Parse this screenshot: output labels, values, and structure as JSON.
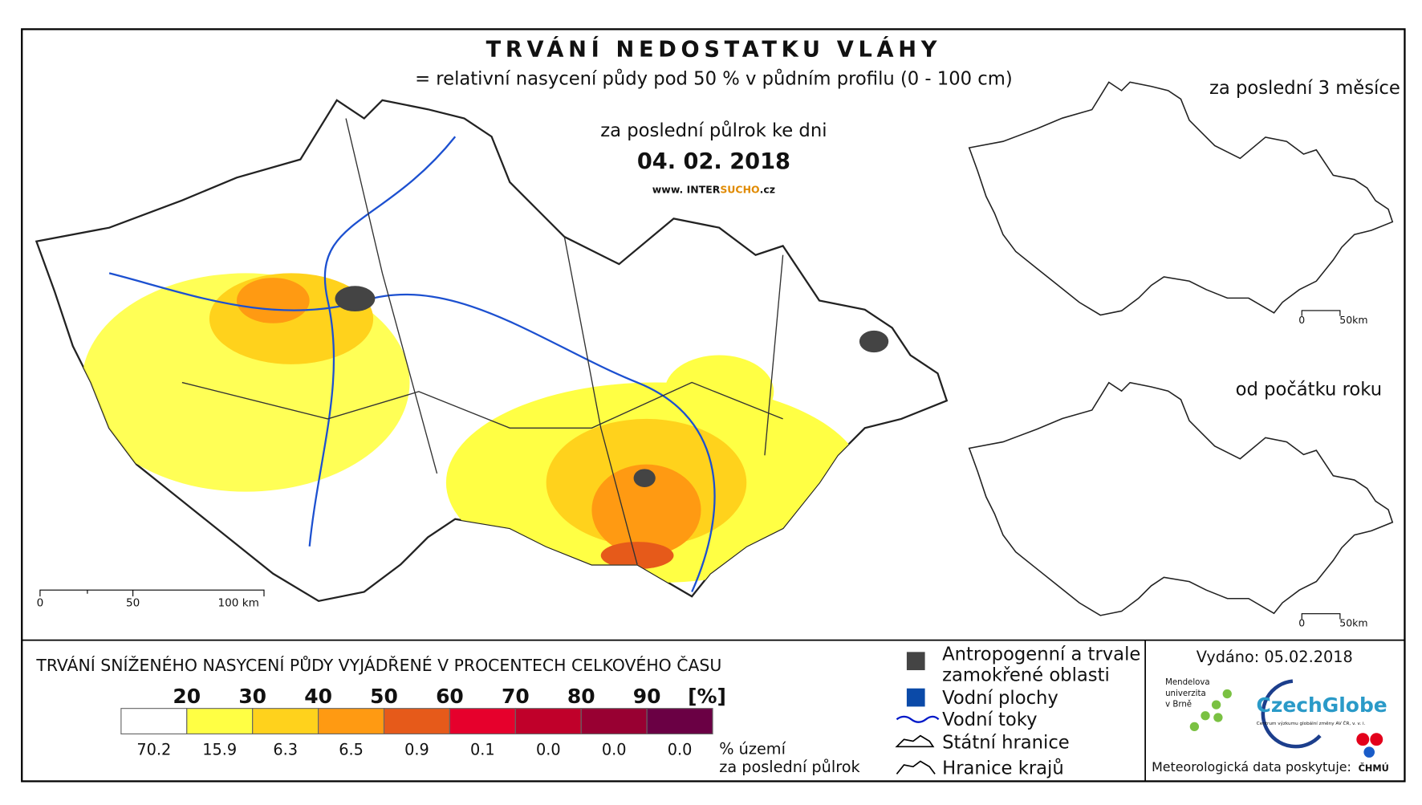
{
  "header": {
    "title": "TRVÁNÍ NEDOSTATKU VLÁHY",
    "subtitle": "= relativní nasycení půdy pod 50 % v půdním profilu (0 - 100 cm)"
  },
  "main_map": {
    "caption": "za poslední půlrok ke dni",
    "date": "04. 02. 2018",
    "url": [
      "www. INTER",
      "SUCHO",
      ".cz"
    ],
    "scale": [
      "0",
      "50",
      "100 km"
    ]
  },
  "insets": [
    {
      "title": "za poslední 3 měsíce",
      "scale": [
        "0",
        "50km"
      ]
    },
    {
      "title": "od počátku roku",
      "scale": [
        "0",
        "50km"
      ]
    }
  ],
  "legend": {
    "title": "TRVÁNÍ SNÍŽENÉHO NASYCENÍ PŮDY VYJÁDŘENÉ V PROCENTECH CELKOVÉHO ČASU",
    "thresholds": [
      "20",
      "30",
      "40",
      "50",
      "60",
      "70",
      "80",
      "90"
    ],
    "unit": "[%]",
    "classes": [
      {
        "color": "#ffffff",
        "share": "70.2"
      },
      {
        "color": "#ffff44",
        "share": "15.9"
      },
      {
        "color": "#ffd21c",
        "share": "6.3"
      },
      {
        "color": "#ff9a12",
        "share": "6.5"
      },
      {
        "color": "#e65a1a",
        "share": "0.9"
      },
      {
        "color": "#e6002c",
        "share": "0.1"
      },
      {
        "color": "#c0002a",
        "share": "0.0"
      },
      {
        "color": "#980032",
        "share": "0.0"
      },
      {
        "color": "#6a0044",
        "share": "0.0"
      }
    ],
    "share_caption": [
      "% území",
      "za poslední půlrok"
    ],
    "items": [
      "Antropogenní a trvale",
      "zamokřené oblasti",
      "Vodní plochy",
      "Vodní toky",
      "Státní hranice",
      "Hranice krajů"
    ]
  },
  "footer": {
    "issued": "Vydáno: 05.02.2018",
    "mendel": [
      "Mendelova",
      "univerzita",
      "v Brně"
    ],
    "czechglobe": "CzechGlobe",
    "czechglobe_sub": "Centrum výzkumu globální změny AV ČR, v. v. i.",
    "data_source": "Meteorologická data poskytuje:",
    "chmu": "ČHMÚ"
  }
}
